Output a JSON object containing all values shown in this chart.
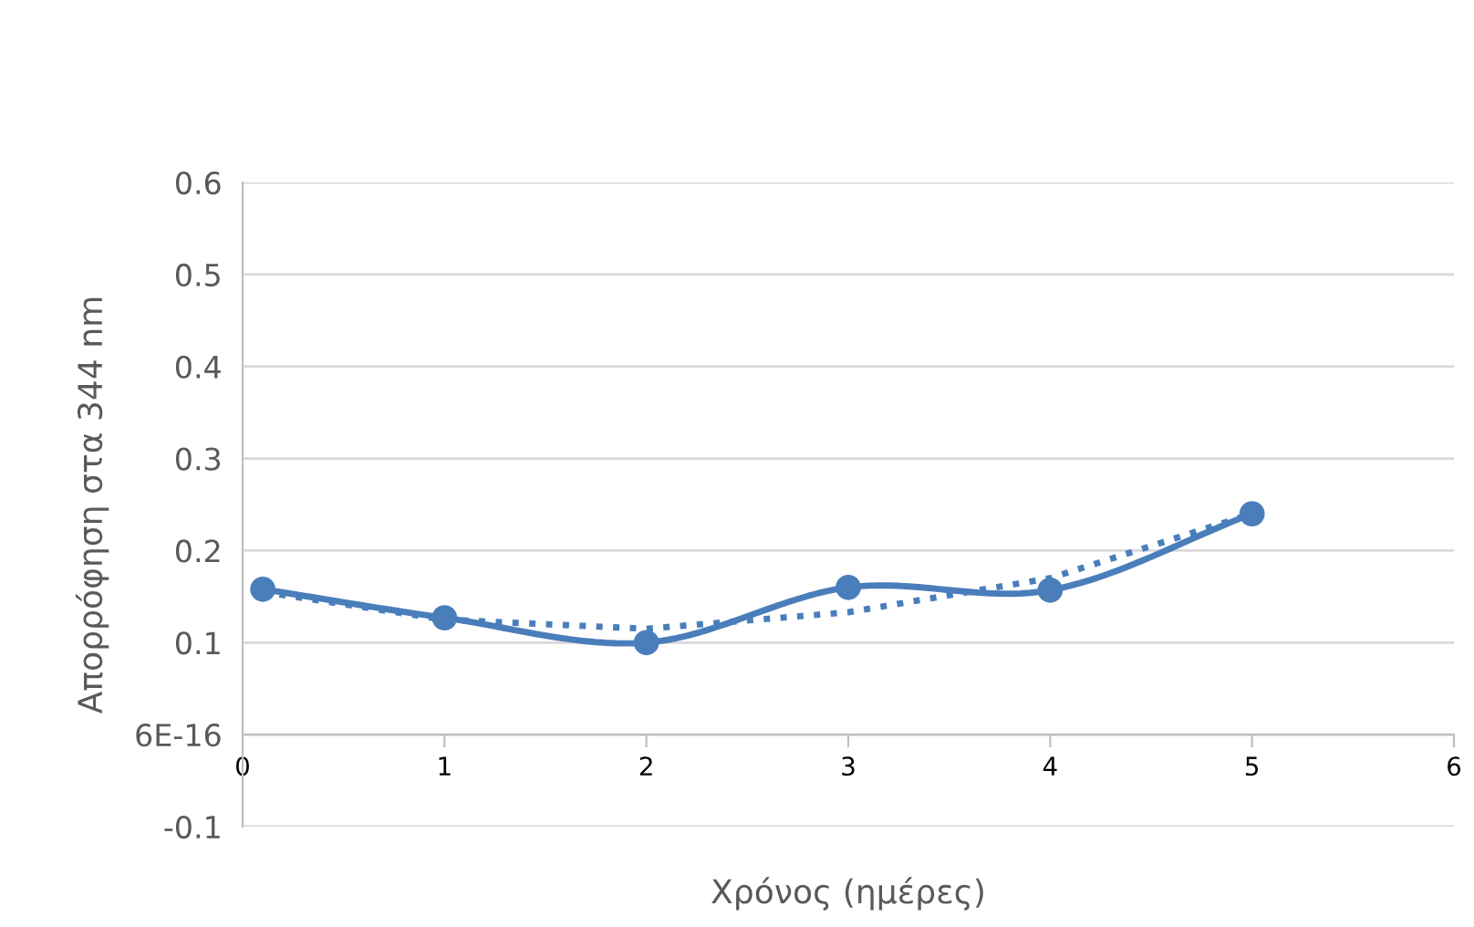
{
  "chart_data": {
    "type": "line",
    "xlabel": "Χρόνος (ημέρες)",
    "ylabel": "Απορρόφηση στα 344 nm",
    "xlim": [
      0,
      6
    ],
    "xticks": [
      0,
      1,
      2,
      3,
      4,
      5,
      6
    ],
    "ylim": [
      -0.1,
      0.6
    ],
    "yticks": [
      -0.1,
      {
        "value": 0,
        "label": "6E-16"
      },
      0.1,
      0.2,
      0.3,
      0.4,
      0.5,
      0.6
    ],
    "grid": "y",
    "legend": false,
    "series": [
      {
        "color": "#4a7ebb",
        "marker": "circle",
        "line_style": "solid",
        "x": [
          0.1,
          1,
          2,
          3,
          4,
          5
        ],
        "values": [
          0.158,
          0.127,
          0.1,
          0.16,
          0.157,
          0.24
        ]
      },
      {
        "color": "#4a7ebb",
        "marker": "none",
        "line_style": "dotted",
        "x": [
          0.1,
          1,
          2,
          3,
          4,
          5
        ],
        "values": [
          0.155,
          0.125,
          0.115,
          0.133,
          0.17,
          0.24
        ]
      }
    ]
  }
}
